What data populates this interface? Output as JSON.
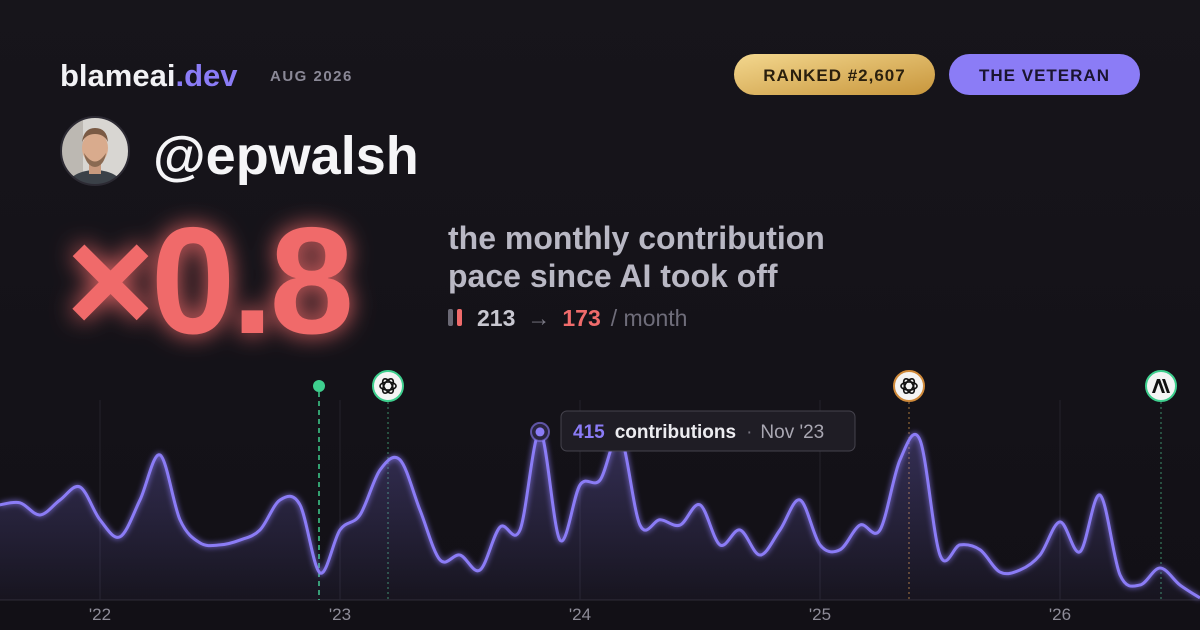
{
  "header": {
    "brand": "blameai",
    "brand_tld": ".dev",
    "period": "AUG 2026",
    "rank_badge": "RANKED #2,607",
    "tier_badge": "THE VETERAN"
  },
  "profile": {
    "handle": "@epwalsh"
  },
  "headline": {
    "multiplier": "×0.8",
    "description": [
      "the monthly contribution",
      "pace since AI took off"
    ],
    "before": 213,
    "arrow": "→",
    "after": 173,
    "unit": "/ month"
  },
  "chart_data": {
    "type": "area",
    "categories": [
      null,
      null,
      null,
      null,
      null,
      "'22",
      null,
      null,
      null,
      null,
      null,
      null,
      null,
      null,
      null,
      null,
      null,
      "'23",
      null,
      null,
      null,
      null,
      null,
      null,
      null,
      null,
      null,
      null,
      null,
      "'24",
      null,
      null,
      null,
      null,
      null,
      null,
      null,
      null,
      null,
      null,
      null,
      "'25",
      null,
      null,
      null,
      null,
      null,
      null,
      null,
      null,
      null,
      null,
      null,
      "'26",
      null,
      null,
      null,
      null,
      null,
      null,
      null
    ],
    "values": [
      235,
      240,
      210,
      247,
      279,
      198,
      156,
      247,
      358,
      198,
      141,
      136,
      148,
      173,
      247,
      235,
      67,
      173,
      210,
      321,
      346,
      222,
      99,
      111,
      74,
      180,
      173,
      415,
      148,
      284,
      296,
      405,
      185,
      198,
      185,
      235,
      136,
      173,
      111,
      173,
      247,
      136,
      124,
      185,
      173,
      346,
      395,
      111,
      136,
      124,
      69,
      74,
      111,
      193,
      119,
      259,
      62,
      37,
      79,
      37,
      5
    ],
    "color": "#8b7cf6",
    "ylim": [
      0,
      600
    ],
    "tooltip": {
      "value": 415,
      "label": "contributions",
      "separator": "·",
      "date": "Nov '23"
    }
  }
}
